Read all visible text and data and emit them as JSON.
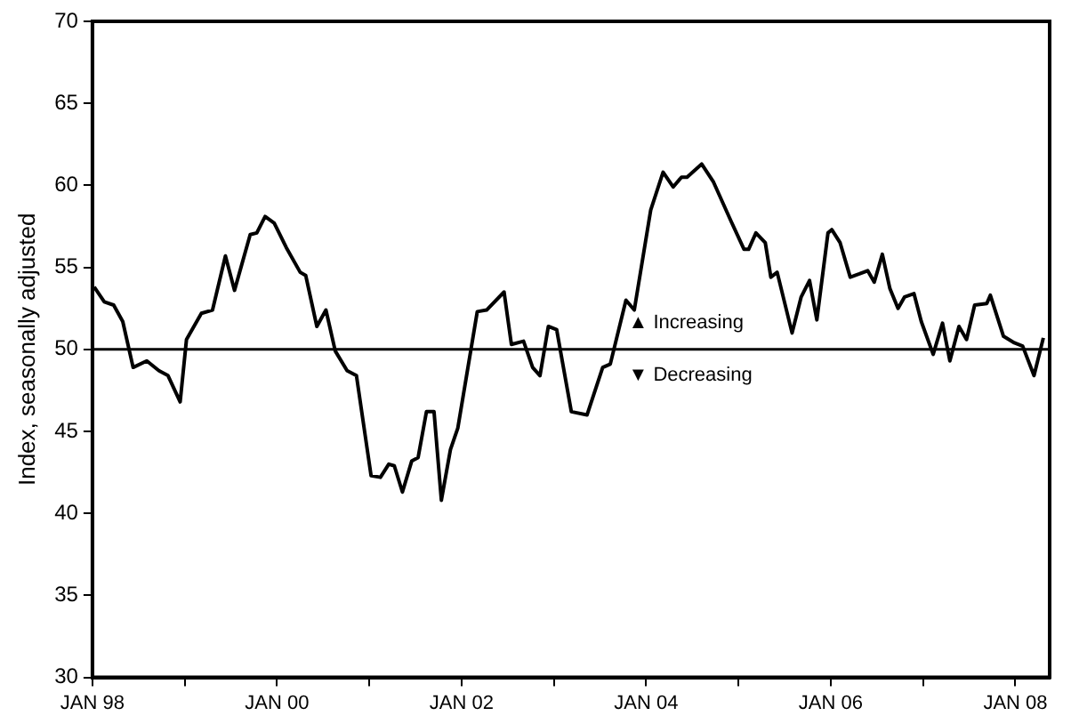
{
  "chart_data": {
    "type": "line",
    "ylabel": "Index, seasonally adjusted",
    "x": [
      "1998-01-08",
      "1998-02-17",
      "1998-03-26",
      "1998-05-01",
      "1998-06-11",
      "1998-08-04",
      "1998-09-21",
      "1998-10-27",
      "1998-12-14",
      "1999-01-08",
      "1999-03-08",
      "1999-04-21",
      "1999-06-11",
      "1999-07-17",
      "1999-09-17",
      "1999-10-13",
      "1999-11-15",
      "1999-12-21",
      "2000-02-07",
      "2000-04-02",
      "2000-04-24",
      "2000-06-07",
      "2000-07-13",
      "2000-08-19",
      "2000-10-05",
      "2000-11-11",
      "2001-01-08",
      "2001-02-14",
      "2001-03-19",
      "2001-04-10",
      "2001-05-12",
      "2001-06-18",
      "2001-07-13",
      "2001-08-15",
      "2001-09-14",
      "2001-10-13",
      "2001-11-18",
      "2001-12-17",
      "2002-03-04",
      "2002-04-10",
      "2002-06-18",
      "2002-07-17",
      "2002-09-03",
      "2002-10-09",
      "2002-11-07",
      "2002-12-10",
      "2003-01-12",
      "2003-03-11",
      "2003-05-12",
      "2003-07-13",
      "2003-08-12",
      "2003-10-13",
      "2003-11-15",
      "2004-01-19",
      "2004-03-08",
      "2004-04-17",
      "2004-05-20",
      "2004-06-11",
      "2004-08-08",
      "2004-09-24",
      "2004-12-03",
      "2005-01-23",
      "2005-02-10",
      "2005-03-11",
      "2005-04-17",
      "2005-05-09",
      "2005-06-03",
      "2005-08-01",
      "2005-09-06",
      "2005-10-09",
      "2005-11-07",
      "2005-12-21",
      "2006-01-05",
      "2006-02-07",
      "2006-03-19",
      "2006-04-24",
      "2006-05-27",
      "2006-06-22",
      "2006-07-24",
      "2006-08-23",
      "2006-09-24",
      "2006-10-20",
      "2006-11-26",
      "2006-12-25",
      "2007-02-10",
      "2007-03-19",
      "2007-04-17",
      "2007-05-23",
      "2007-06-22",
      "2007-07-24",
      "2007-09-10",
      "2007-09-24",
      "2007-11-15",
      "2007-12-28",
      "2008-01-30",
      "2008-03-15",
      "2008-04-21"
    ],
    "series": [
      {
        "color": "#000000",
        "values": [
          53.8,
          52.9,
          52.7,
          51.7,
          48.9,
          49.3,
          48.7,
          48.4,
          46.8,
          50.6,
          52.2,
          52.4,
          55.7,
          53.6,
          57.0,
          57.1,
          58.1,
          57.7,
          56.2,
          54.7,
          54.5,
          51.4,
          52.4,
          49.9,
          48.7,
          48.4,
          42.3,
          42.2,
          43.0,
          42.9,
          41.3,
          43.2,
          43.4,
          46.2,
          46.2,
          40.8,
          43.9,
          45.2,
          52.3,
          52.4,
          53.5,
          50.3,
          50.5,
          48.9,
          48.4,
          51.4,
          51.2,
          46.2,
          46.0,
          48.9,
          49.1,
          53.0,
          52.4,
          58.5,
          60.8,
          59.9,
          60.5,
          60.5,
          61.3,
          60.2,
          57.8,
          56.1,
          56.1,
          57.1,
          56.5,
          54.4,
          54.7,
          51.0,
          53.2,
          54.2,
          51.8,
          57.1,
          57.3,
          56.5,
          54.4,
          54.6,
          54.8,
          54.1,
          55.8,
          53.7,
          52.5,
          53.2,
          53.4,
          51.7,
          49.7,
          51.6,
          49.3,
          51.4,
          50.6,
          52.7,
          52.8,
          53.3,
          50.8,
          50.4,
          50.2,
          48.4,
          50.7
        ]
      }
    ],
    "xlim": [
      "1998-01-01",
      "2008-05-16"
    ],
    "xticks": [
      {
        "value": "1998-01-01",
        "label": "JAN 98"
      },
      {
        "value": "1999-01-01",
        "label": null
      },
      {
        "value": "2000-01-01",
        "label": "JAN 00"
      },
      {
        "value": "2001-01-01",
        "label": null
      },
      {
        "value": "2002-01-01",
        "label": "JAN 02"
      },
      {
        "value": "2003-01-01",
        "label": null
      },
      {
        "value": "2004-01-01",
        "label": "JAN 04"
      },
      {
        "value": "2005-01-01",
        "label": null
      },
      {
        "value": "2006-01-01",
        "label": "JAN 06"
      },
      {
        "value": "2007-01-01",
        "label": null
      },
      {
        "value": "2008-01-01",
        "label": "JAN 08"
      }
    ],
    "ylim": [
      30,
      70
    ],
    "yticks": [
      30,
      35,
      40,
      45,
      50,
      55,
      60,
      65,
      70
    ],
    "ref_lines": [
      {
        "axis": "y",
        "value": 50,
        "color": "#000000"
      }
    ],
    "annotations": [
      "▲ Increasing",
      "▼ Decreasing"
    ],
    "legend": false,
    "marker": "none",
    "line_style": "solid"
  }
}
